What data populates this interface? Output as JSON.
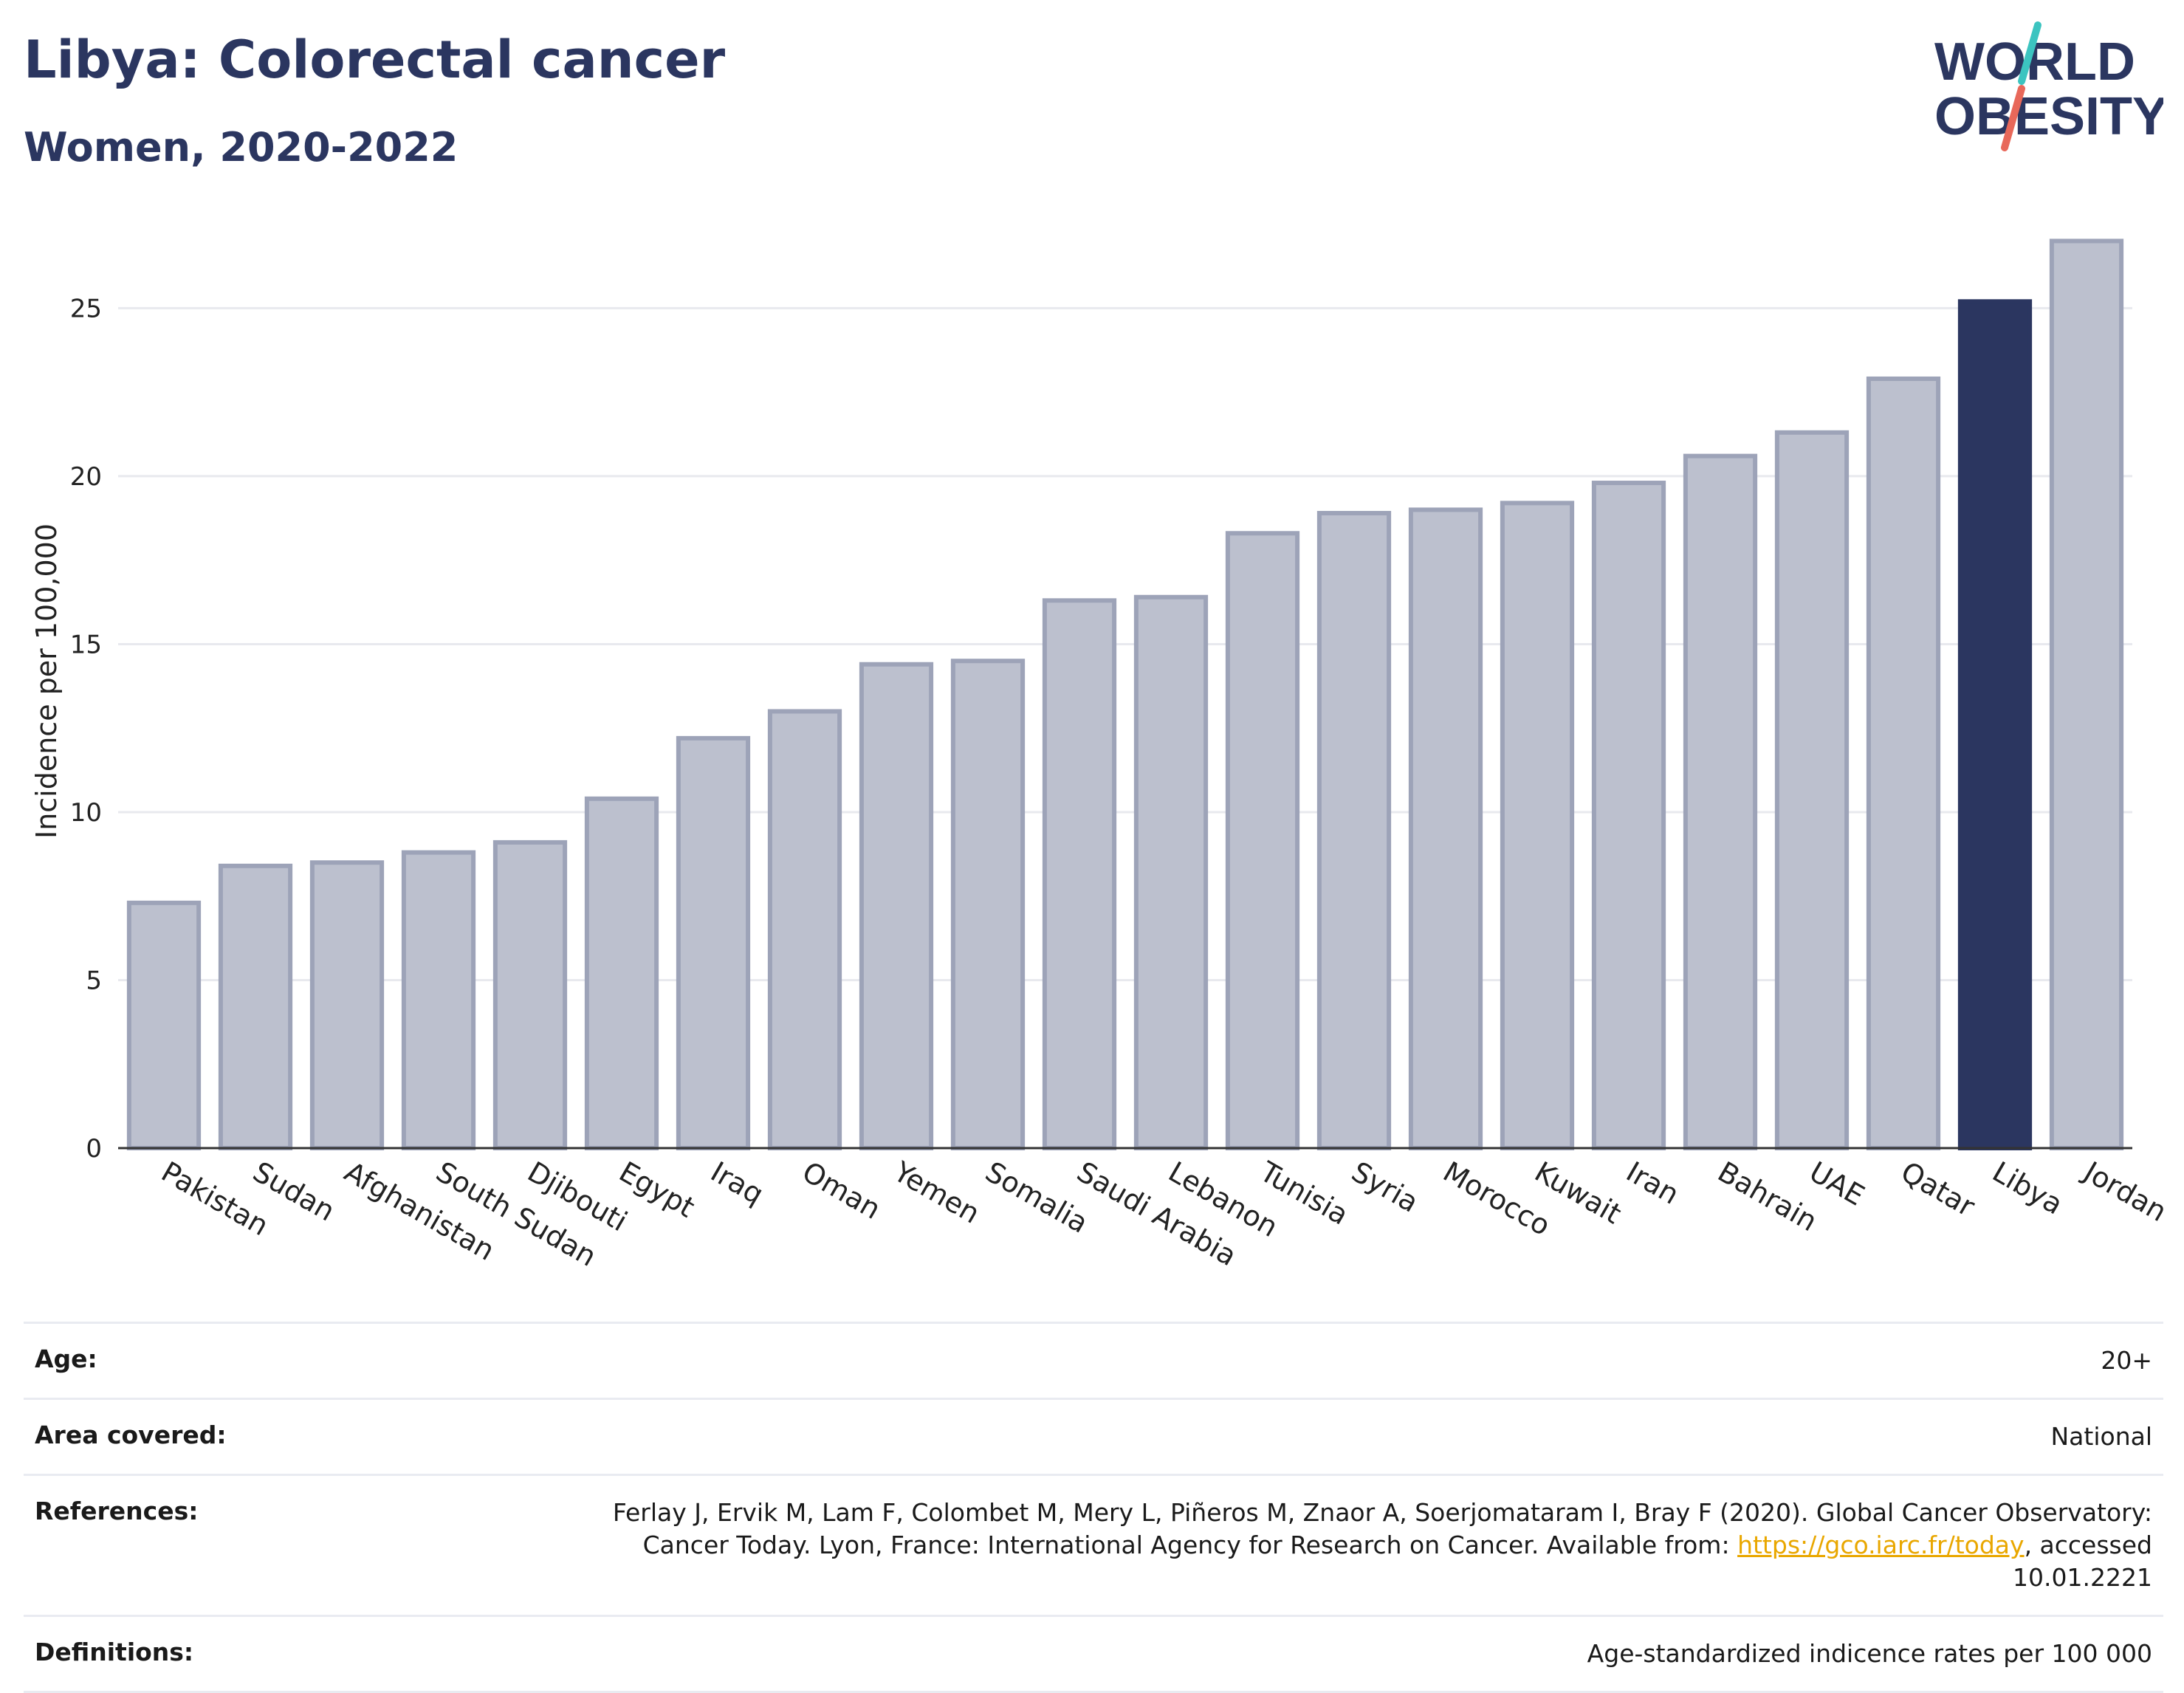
{
  "header": {
    "title": "Libya: Colorectal cancer",
    "subtitle": "Women, 2020-2022"
  },
  "logo": {
    "line1": "WORLD",
    "line2": "OBESITY",
    "slash_colors": [
      "#3cc4c0",
      "#e8685a"
    ]
  },
  "colors": {
    "bar": "#bcc0ce",
    "bar_border": "#9da3b8",
    "highlight": "#2b3660",
    "grid": "#e8e9ee",
    "title": "#2b3660",
    "link": "#e9a700"
  },
  "chart_data": {
    "type": "bar",
    "ylabel": "Incidence per 100,000",
    "ylim": [
      0,
      27.8
    ],
    "yticks": [
      0,
      5,
      10,
      15,
      20,
      25
    ],
    "grid": true,
    "highlight": "Libya",
    "categories": [
      "Pakistan",
      "Sudan",
      "Afghanistan",
      "South Sudan",
      "Djibouti",
      "Egypt",
      "Iraq",
      "Oman",
      "Yemen",
      "Somalia",
      "Saudi Arabia",
      "Lebanon",
      "Tunisia",
      "Syria",
      "Morocco",
      "Kuwait",
      "Iran",
      "Bahrain",
      "UAE",
      "Qatar",
      "Libya",
      "Jordan"
    ],
    "values": [
      7.3,
      8.4,
      8.5,
      8.8,
      9.1,
      10.4,
      12.2,
      13.0,
      14.4,
      14.5,
      16.3,
      16.4,
      18.3,
      18.9,
      19.0,
      19.2,
      19.8,
      20.6,
      21.3,
      22.9,
      25.2,
      27.0
    ]
  },
  "meta": [
    {
      "key": "Age:",
      "value": "20+"
    },
    {
      "key": "Area covered:",
      "value": "National"
    },
    {
      "key": "References:",
      "value_pre": "Ferlay J, Ervik M, Lam F, Colombet M, Mery L, Piñeros M, Znaor A, Soerjomataram I, Bray F (2020). Global Cancer Observatory: Cancer Today. Lyon, France: International Agency for Research on Cancer. Available from: ",
      "link": "https://gco.iarc.fr/today",
      "value_post": ", accessed 10.01.2221"
    },
    {
      "key": "Definitions:",
      "value": "Age-standardized indicence rates per 100 000"
    }
  ]
}
